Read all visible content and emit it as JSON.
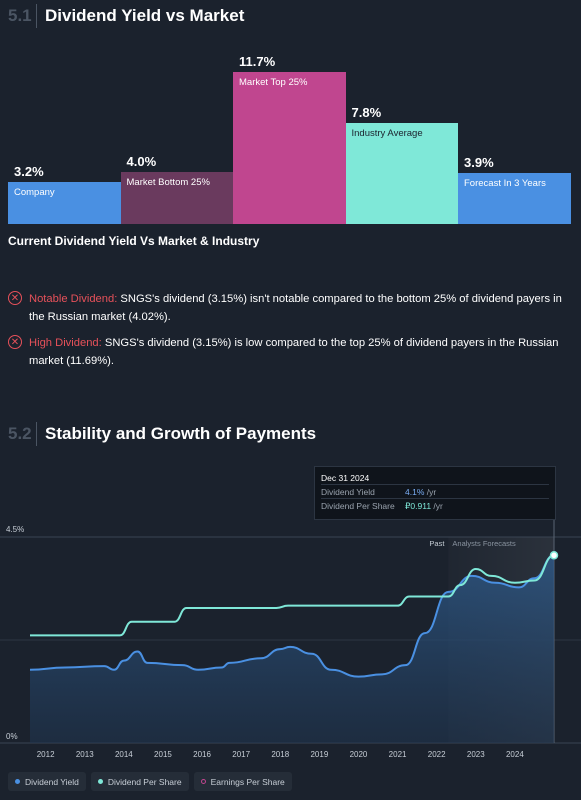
{
  "section1": {
    "number": "5.1",
    "title": "Dividend Yield vs Market"
  },
  "section2": {
    "number": "5.2",
    "title": "Stability and Growth of Payments"
  },
  "caption": "Current Dividend Yield Vs Market & Industry",
  "notes": [
    {
      "head": "Notable Dividend:",
      "body": " SNGS's dividend (3.15%) isn't notable compared to the bottom 25% of dividend payers in the Russian market (4.02%)."
    },
    {
      "head": "High Dividend:",
      "body": " SNGS's dividend (3.15%) is low compared to the top 25% of dividend payers in the Russian market (11.69%)."
    }
  ],
  "tooltip": {
    "date": "Dec 31 2024",
    "rows": [
      {
        "key": "Dividend Yield",
        "value": "4.1%",
        "unit": " /yr"
      },
      {
        "key": "Dividend Per Share",
        "value": "₽0.911",
        "unit": " /yr"
      }
    ]
  },
  "legend": [
    {
      "label": "Dividend Yield",
      "color": "#4a90e2"
    },
    {
      "label": "Dividend Per Share",
      "color": "#7fe8d8"
    },
    {
      "label": "Earnings Per Share",
      "color": "#c0468f"
    }
  ],
  "chart_data": [
    {
      "type": "bar",
      "title": "Dividend Yield vs Market",
      "categories": [
        "Company",
        "Market Bottom 25%",
        "Market Top 25%",
        "Industry Average",
        "Forecast In 3 Years"
      ],
      "value_labels": [
        "3.2%",
        "4.0%",
        "11.7%",
        "7.8%",
        "3.9%"
      ],
      "values": [
        3.2,
        4.0,
        11.7,
        7.8,
        3.9
      ],
      "colors": [
        "#4a90e2",
        "#6a3a5e",
        "#c0468f",
        "#7fe8d8",
        "#4a90e2"
      ],
      "label_colors": [
        "#ffffff",
        "#ffffff",
        "#ffffff",
        "#1b222d",
        "#ffffff"
      ],
      "ylim": [
        0,
        11.7
      ]
    },
    {
      "type": "line",
      "title": "Stability and Growth of Payments",
      "y_ticks": [
        "4.5%",
        "0%"
      ],
      "ylim": [
        0,
        4.5
      ],
      "xlim": [
        2011.6,
        2025.0
      ],
      "x_ticks": [
        2012,
        2013,
        2014,
        2015,
        2016,
        2017,
        2018,
        2019,
        2020,
        2021,
        2022,
        2023,
        2024
      ],
      "annotations": {
        "past": "Past",
        "forecast": "Analysts Forecasts",
        "forecast_start": 2022.3
      },
      "series": [
        {
          "name": "Dividend Yield",
          "color": "#4a90e2",
          "points": [
            [
              2011.6,
              1.6
            ],
            [
              2012.5,
              1.65
            ],
            [
              2013.5,
              1.68
            ],
            [
              2013.75,
              1.6
            ],
            [
              2014.0,
              1.8
            ],
            [
              2014.35,
              2.0
            ],
            [
              2014.6,
              1.75
            ],
            [
              2015.5,
              1.7
            ],
            [
              2015.9,
              1.6
            ],
            [
              2016.5,
              1.65
            ],
            [
              2016.7,
              1.75
            ],
            [
              2017.5,
              1.85
            ],
            [
              2018.0,
              2.05
            ],
            [
              2018.25,
              2.1
            ],
            [
              2018.8,
              1.95
            ],
            [
              2019.3,
              1.6
            ],
            [
              2020.0,
              1.45
            ],
            [
              2020.6,
              1.5
            ],
            [
              2021.2,
              1.7
            ],
            [
              2021.7,
              2.4
            ],
            [
              2022.3,
              3.3
            ],
            [
              2022.9,
              3.65
            ],
            [
              2023.5,
              3.5
            ],
            [
              2024.1,
              3.4
            ],
            [
              2024.5,
              3.6
            ],
            [
              2025.0,
              4.1
            ]
          ]
        },
        {
          "name": "Dividend Per Share",
          "color": "#7fe8d8",
          "points": [
            [
              2011.6,
              2.35
            ],
            [
              2013.9,
              2.35
            ],
            [
              2014.2,
              2.65
            ],
            [
              2015.3,
              2.65
            ],
            [
              2015.6,
              2.95
            ],
            [
              2017.9,
              2.95
            ],
            [
              2018.2,
              3.0
            ],
            [
              2021.0,
              3.0
            ],
            [
              2021.3,
              3.2
            ],
            [
              2022.3,
              3.2
            ],
            [
              2022.6,
              3.45
            ],
            [
              2023.0,
              3.8
            ],
            [
              2023.4,
              3.65
            ],
            [
              2024.0,
              3.5
            ],
            [
              2024.5,
              3.55
            ],
            [
              2025.0,
              4.1
            ]
          ]
        }
      ]
    }
  ]
}
